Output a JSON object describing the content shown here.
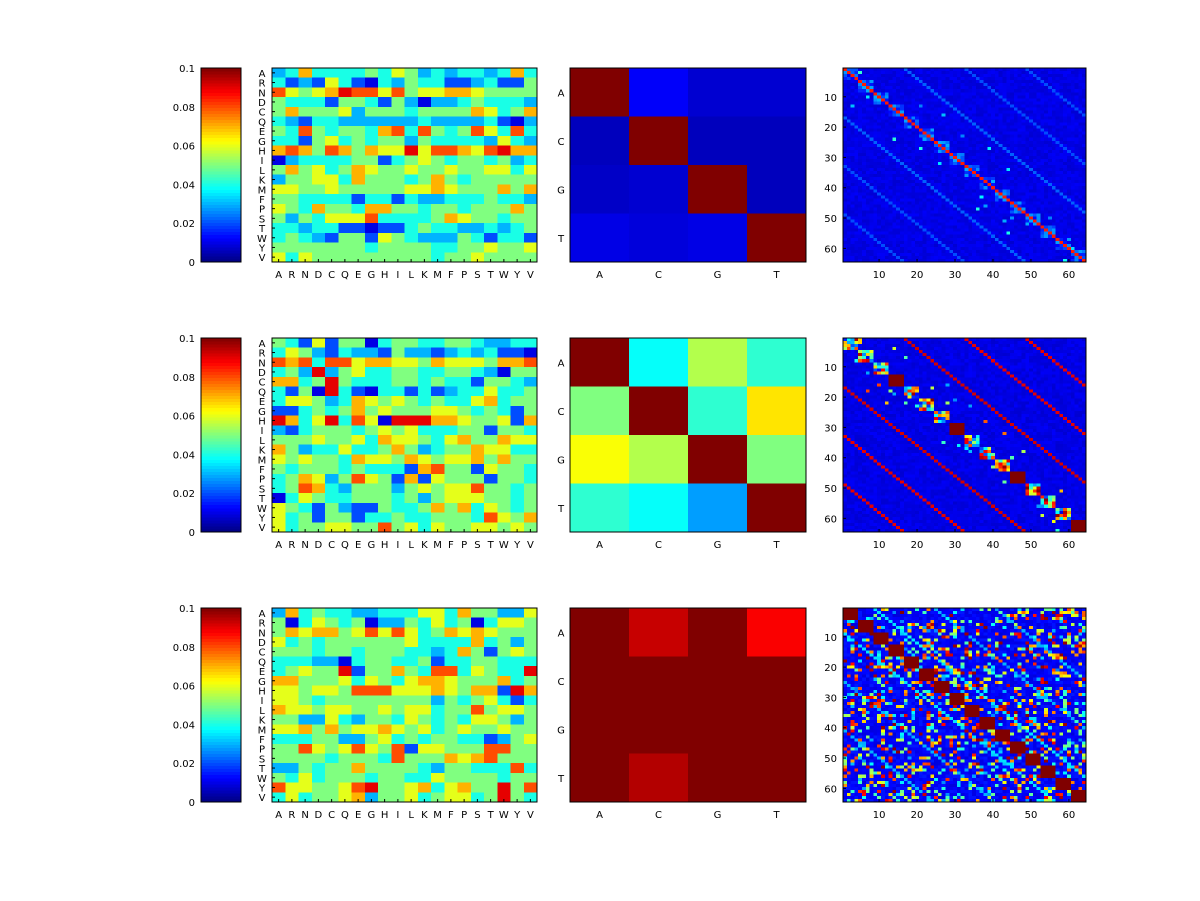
{
  "chart_data": {
    "type": "heatmap",
    "colormap": "jet",
    "colorbar": {
      "clim": [
        0,
        0.1
      ],
      "ticks": [
        0,
        0.02,
        0.04,
        0.06,
        0.08,
        0.1
      ],
      "tick_labels": [
        "0",
        "0.02",
        "0.04",
        "0.06",
        "0.08",
        "0.1"
      ]
    },
    "amino_acids": [
      "A",
      "R",
      "N",
      "D",
      "C",
      "Q",
      "E",
      "G",
      "H",
      "I",
      "L",
      "K",
      "M",
      "F",
      "P",
      "S",
      "T",
      "W",
      "Y",
      "V"
    ],
    "nucleotides": [
      "A",
      "C",
      "G",
      "T"
    ],
    "position_ticks": [
      10,
      20,
      30,
      40,
      50,
      60
    ],
    "position_count": 64,
    "aa_value_encoding": "each digit d = d*0.01",
    "rows": [
      {
        "aa_matrix": [
          "34744445465343443474",
          "42326421435442234225",
          "86567988685667765555",
          "54442554253133454443",
          "57555635554555576457",
          "43244333333433334213",
          "54854554784854586484",
          "44256454553544443643",
          "78758757669688768977",
          "13444455245654554534",
          "57564576556556556646",
          "35566475554575455555",
          "66556555556676555757",
          "55444424424334445443",
          "65475547755455455575",
          "53546668444457655455",
          "44344221224544334345",
          "45432552654333542442",
          "55555554555544556556",
          "64655555555545565555"
        ],
        "nuc_matrix": [
          [
            1.0,
            0.12,
            0.08,
            0.08
          ],
          [
            0.06,
            1.0,
            0.06,
            0.06
          ],
          [
            0.07,
            0.08,
            1.0,
            0.06
          ],
          [
            0.1,
            0.09,
            0.1,
            1.0
          ]
        ],
        "position_matrix": {
          "seed": 11,
          "background": 0.1,
          "noise": 0.04,
          "bands": [
            {
              "offset": 0,
              "value": 0.85
            },
            {
              "offset": 16,
              "value": 0.22
            },
            {
              "offset": -16,
              "value": 0.22
            },
            {
              "offset": 32,
              "value": 0.2
            },
            {
              "offset": -32,
              "value": 0.2
            },
            {
              "offset": 48,
              "value": 0.2
            },
            {
              "offset": -48,
              "value": 0.2
            }
          ],
          "block_size": 4,
          "block_range": [
            0.1,
            0.3
          ],
          "solid_block_every": 0,
          "scatter_density": 0.02,
          "scatter_range": [
            0.25,
            0.45
          ],
          "near_diag": 12
        }
      },
      {
        "aa_matrix": [
          "54262551455445543344",
          "46532433253323434221",
          "87848867766576665778",
          "45393564455445543155",
          "77459544455454425543",
          "42519421442423446445",
          "46653476565454467455",
          "22454575655566545425",
          "97469486199977655627",
          "32455545656444552554",
          "55565564766546755766",
          "75344644575345576644",
          "65655476657656675755",
          "54555454442785526554",
          "45763586527265552554",
          "45874355535656685545",
          "14654455545356665545",
          "65425322544575746545",
          "64525524454455548657",
          "64556655856465566565"
        ],
        "nuc_matrix": [
          [
            1.0,
            0.38,
            0.55,
            0.42
          ],
          [
            0.5,
            1.0,
            0.42,
            0.65
          ],
          [
            0.62,
            0.55,
            1.0,
            0.5
          ],
          [
            0.42,
            0.38,
            0.28,
            1.0
          ]
        ],
        "position_matrix": {
          "seed": 23,
          "background": 0.1,
          "noise": 0.04,
          "bands": [
            {
              "offset": 16,
              "value": 0.92
            },
            {
              "offset": -16,
              "value": 0.92
            },
            {
              "offset": 32,
              "value": 0.9
            },
            {
              "offset": -32,
              "value": 0.9
            },
            {
              "offset": 48,
              "value": 0.9
            },
            {
              "offset": -48,
              "value": 0.9
            }
          ],
          "block_size": 4,
          "block_range": [
            0.1,
            1.0
          ],
          "solid_block_every": 4,
          "scatter_density": 0.03,
          "scatter_range": [
            0.25,
            0.85
          ],
          "near_diag": 12
        }
      },
      {
        "aa_matrix": [
          "37454433444664755336",
          "51465451335464514665",
          "57677568686457676555",
          "64545555556444474535",
          "55545545554434752565",
          "44433145544524455444",
          "45655925575488465449",
          "77555646546776555745",
          "66566588866676577297",
          "66545555555535456424",
          "76656655656645585665",
          "55336435546545466535",
          "66757566765645655655",
          "44455335645455442356",
          "55865686582665558855",
          "55554555485557678555",
          "33545575555435544484",
          "54645554554465555455",
          "86655689556746755958",
          "46455673556456645954"
        ],
        "nuc_matrix": [
          [
            1.0,
            0.93,
            1.0,
            0.88
          ],
          [
            1.0,
            1.0,
            1.0,
            1.0
          ],
          [
            1.0,
            1.0,
            1.0,
            1.0
          ],
          [
            1.0,
            0.95,
            1.0,
            1.0
          ]
        ],
        "position_matrix": {
          "seed": 37,
          "background": 0.12,
          "noise": 0.06,
          "bands": [
            {
              "offset": 8,
              "value": 0.35
            },
            {
              "offset": -8,
              "value": 0.35
            },
            {
              "offset": 24,
              "value": 0.3
            },
            {
              "offset": -24,
              "value": 0.3
            },
            {
              "offset": 40,
              "value": 0.3
            },
            {
              "offset": -40,
              "value": 0.3
            }
          ],
          "block_size": 4,
          "block_range": [
            0.15,
            0.75
          ],
          "solid_block_every": 1,
          "scatter_density": 0.28,
          "scatter_range": [
            0.25,
            1.0
          ],
          "near_diag": 64
        }
      }
    ]
  }
}
